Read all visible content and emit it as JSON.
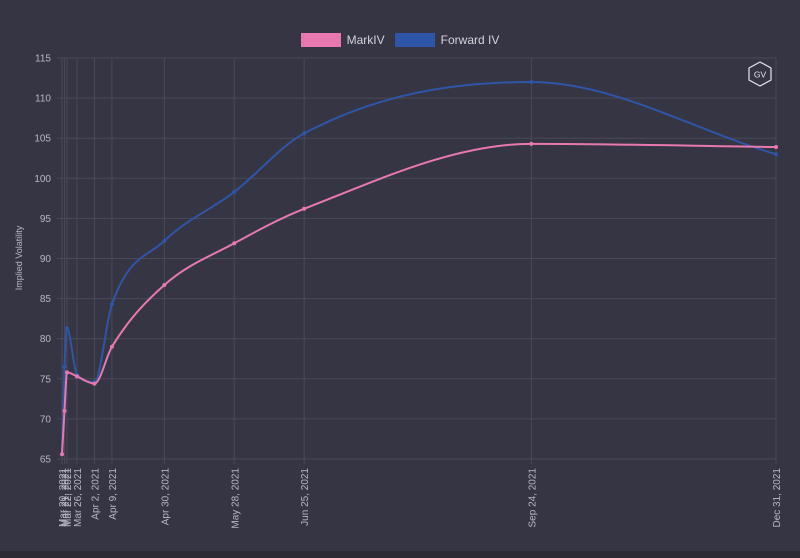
{
  "legend": [
    {
      "label": "MarkIV",
      "color": "#e879b0"
    },
    {
      "label": "Forward IV",
      "color": "#2f55a8"
    }
  ],
  "logo_text": "GV",
  "chart_data": {
    "type": "line",
    "ylabel": "Implied Volatility",
    "xlabel": "",
    "ylim": [
      65,
      115
    ],
    "yticks": [
      65,
      70,
      75,
      80,
      85,
      90,
      95,
      100,
      105,
      110,
      115
    ],
    "xlim": [
      "2021-03-20",
      "2021-12-31"
    ],
    "grid": true,
    "legend_position": "top-center",
    "xticks": [
      {
        "date": "2021-03-20",
        "label": "Mar 20, 2021"
      },
      {
        "date": "2021-03-21",
        "label": "Mar 21, 2021"
      },
      {
        "date": "2021-03-22",
        "label": "Mar 22, 2021"
      },
      {
        "date": "2021-03-26",
        "label": "Mar 26, 2021"
      },
      {
        "date": "2021-04-02",
        "label": "Apr 2, 2021"
      },
      {
        "date": "2021-04-09",
        "label": "Apr 9, 2021"
      },
      {
        "date": "2021-04-30",
        "label": "Apr 30, 2021"
      },
      {
        "date": "2021-05-28",
        "label": "May 28, 2021"
      },
      {
        "date": "2021-06-25",
        "label": "Jun 25, 2021"
      },
      {
        "date": "2021-09-24",
        "label": "Sep 24, 2021"
      },
      {
        "date": "2021-12-31",
        "label": "Dec 31, 2021"
      }
    ],
    "series": [
      {
        "name": "MarkIV",
        "color": "#e879b0",
        "points": [
          {
            "x": "2021-03-20",
            "y": 65.6
          },
          {
            "x": "2021-03-21",
            "y": 71.0
          },
          {
            "x": "2021-03-22",
            "y": 75.8
          },
          {
            "x": "2021-03-26",
            "y": 75.3
          },
          {
            "x": "2021-04-02",
            "y": 74.4
          },
          {
            "x": "2021-04-09",
            "y": 79.0
          },
          {
            "x": "2021-04-30",
            "y": 86.7
          },
          {
            "x": "2021-05-28",
            "y": 91.9
          },
          {
            "x": "2021-06-25",
            "y": 96.2
          },
          {
            "x": "2021-09-24",
            "y": 104.3
          },
          {
            "x": "2021-12-31",
            "y": 103.9
          }
        ]
      },
      {
        "name": "Forward IV",
        "color": "#2f55a8",
        "points": [
          {
            "x": "2021-03-20",
            "y": 65.6
          },
          {
            "x": "2021-03-21",
            "y": 76.5
          },
          {
            "x": "2021-03-22",
            "y": 81.3
          },
          {
            "x": "2021-03-26",
            "y": 75.5
          },
          {
            "x": "2021-04-02",
            "y": 74.6
          },
          {
            "x": "2021-04-09",
            "y": 84.3
          },
          {
            "x": "2021-04-30",
            "y": 92.2
          },
          {
            "x": "2021-05-28",
            "y": 98.3
          },
          {
            "x": "2021-06-25",
            "y": 105.6
          },
          {
            "x": "2021-09-24",
            "y": 112.0
          },
          {
            "x": "2021-12-31",
            "y": 103.0
          }
        ]
      }
    ]
  }
}
